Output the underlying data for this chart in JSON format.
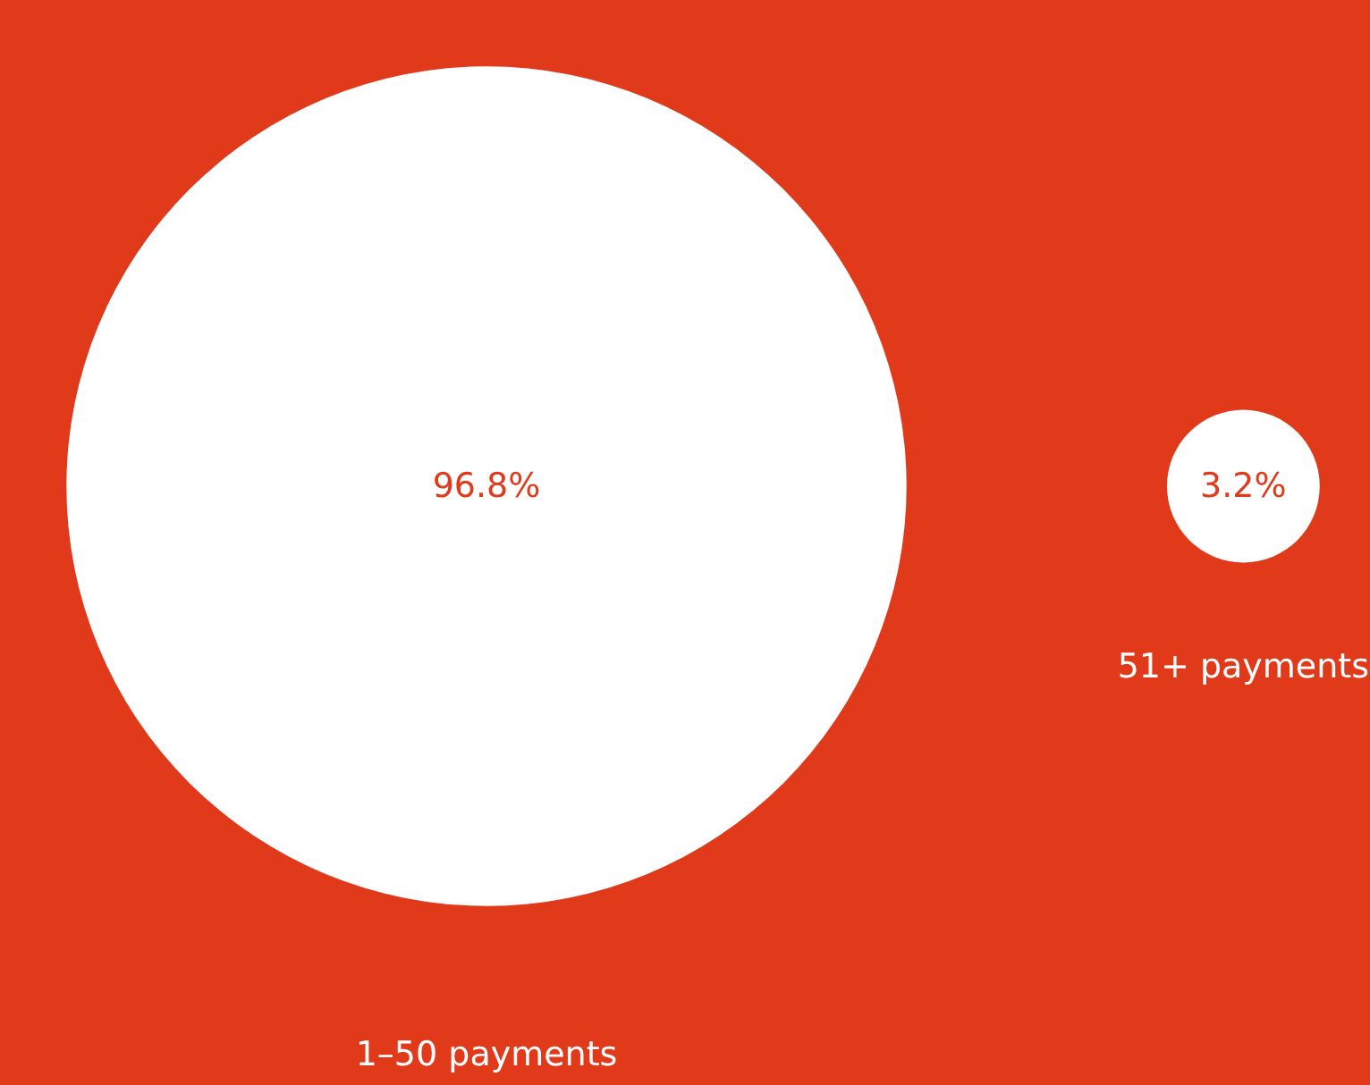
{
  "chart_data": {
    "type": "other",
    "categories": [
      "1–50 payments",
      "51+ payments"
    ],
    "values": [
      96.8,
      3.2
    ],
    "value_labels": [
      "96.8%",
      "3.2%"
    ],
    "colors": [
      "#ffffff",
      "#ffffff"
    ]
  }
}
